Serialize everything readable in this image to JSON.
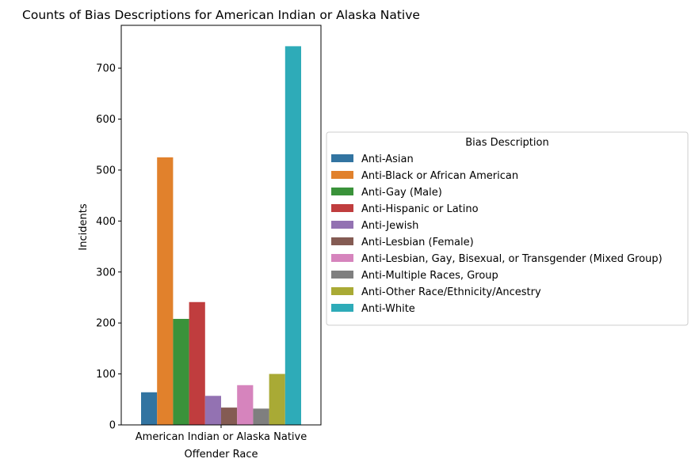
{
  "chart_data": {
    "type": "bar",
    "title": "Counts of Bias Descriptions for American Indian or Alaska Native",
    "xlabel": "Offender Race",
    "ylabel": "Incidents",
    "categories": [
      "American Indian or Alaska Native"
    ],
    "ylim": [
      0,
      784
    ],
    "yticks": [
      0,
      100,
      200,
      300,
      400,
      500,
      600,
      700
    ],
    "grid": false,
    "legend": {
      "title": "Bias Description",
      "placement": "center-right outside"
    },
    "series": [
      {
        "name": "Anti-Asian",
        "color": "#3274a1",
        "values": [
          64
        ]
      },
      {
        "name": "Anti-Black or African American",
        "color": "#e1812c",
        "values": [
          525
        ]
      },
      {
        "name": "Anti-Gay (Male)",
        "color": "#3a923a",
        "values": [
          208
        ]
      },
      {
        "name": "Anti-Hispanic or Latino",
        "color": "#c03d3e",
        "values": [
          241
        ]
      },
      {
        "name": "Anti-Jewish",
        "color": "#9372b2",
        "values": [
          57
        ]
      },
      {
        "name": "Anti-Lesbian (Female)",
        "color": "#845b53",
        "values": [
          34
        ]
      },
      {
        "name": "Anti-Lesbian, Gay, Bisexual, or Transgender (Mixed Group)",
        "color": "#d684bd",
        "values": [
          78
        ]
      },
      {
        "name": "Anti-Multiple Races, Group",
        "color": "#7f7f7f",
        "values": [
          32
        ]
      },
      {
        "name": "Anti-Other Race/Ethnicity/Ancestry",
        "color": "#a9aa35",
        "values": [
          100
        ]
      },
      {
        "name": "Anti-White",
        "color": "#2eabb8",
        "values": [
          743
        ]
      }
    ]
  }
}
